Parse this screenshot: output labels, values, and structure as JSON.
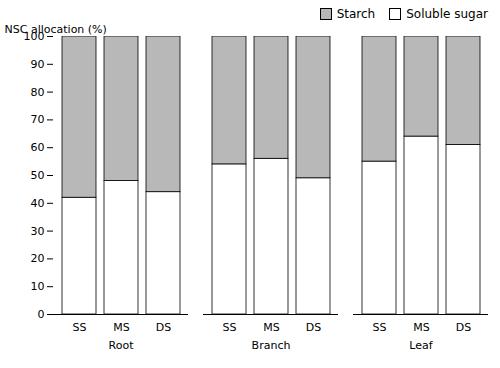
{
  "chart_data": {
    "type": "bar",
    "stacked": true,
    "ylabel": "NSC allocation (%)",
    "groups": [
      "Root",
      "Branch",
      "Leaf"
    ],
    "categories": [
      "SS",
      "MS",
      "DS"
    ],
    "series": [
      {
        "name": "Soluble sugar",
        "color": "#ffffff",
        "values": [
          [
            42,
            48,
            44
          ],
          [
            54,
            56,
            49
          ],
          [
            55,
            64,
            61
          ]
        ]
      },
      {
        "name": "Starch",
        "color": "#b8b8b8",
        "values": [
          [
            58,
            52,
            56
          ],
          [
            46,
            44,
            51
          ],
          [
            45,
            36,
            39
          ]
        ]
      }
    ],
    "ylim": [
      0,
      100
    ],
    "yticks": [
      0,
      10,
      20,
      30,
      40,
      50,
      60,
      70,
      80,
      90,
      100
    ],
    "grid": false,
    "legend": "upper right"
  }
}
